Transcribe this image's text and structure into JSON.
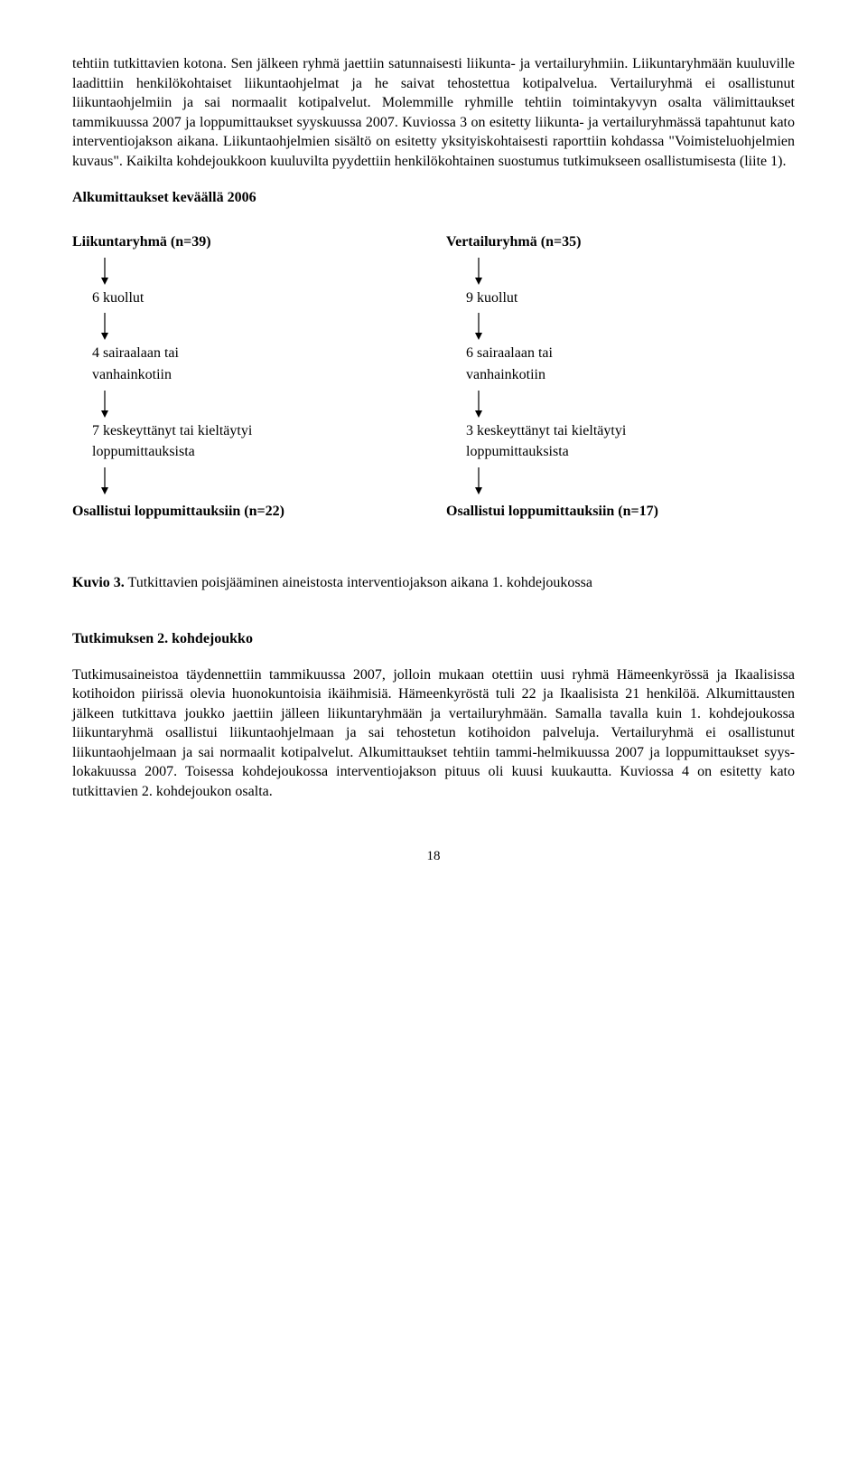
{
  "intro_paragraph": "tehtiin tutkittavien kotona. Sen jälkeen ryhmä jaettiin satunnaisesti liikunta- ja vertailuryhmiin. Liikuntaryhmään kuuluville laadittiin henkilökohtaiset liikuntaohjelmat ja he saivat tehostettua kotipalvelua. Vertailuryhmä ei osallistunut liikuntaohjelmiin ja sai normaalit kotipalvelut. Molemmille ryhmille tehtiin toimintakyvyn osalta välimittaukset tammikuussa 2007 ja loppumittaukset syyskuussa 2007. Kuviossa 3 on esitetty liikunta- ja vertailuryhmässä tapahtunut kato interventiojakson aikana. Liikuntaohjelmien sisältö on esitetty yksityiskohtaisesti raporttiin kohdassa \"Voimisteluohjelmien kuvaus\". Kaikilta kohdejoukkoon kuuluvilta pyydettiin henkilökohtainen suostumus tutkimukseen osallistumisesta (liite 1).",
  "section_title": "Alkumittaukset  keväällä 2006",
  "flow": {
    "left": {
      "head": "Liikuntaryhmä (n=39)",
      "n1": "6 kuollut",
      "n2a": "4 sairaalaan tai",
      "n2b": "vanhainkotiin",
      "n3a": "7 keskeyttänyt tai kieltäytyi",
      "n3b": "loppumittauksista",
      "foot": "Osallistui loppumittauksiin  (n=22)"
    },
    "right": {
      "head": "Vertailuryhmä (n=35)",
      "n1": "9 kuollut",
      "n2a": "6 sairaalaan tai",
      "n2b": "vanhainkotiin",
      "n3a": "3 keskeyttänyt tai kieltäytyi",
      "n3b": "loppumittauksista",
      "foot": "Osallistui loppumittauksiin (n=17)"
    }
  },
  "caption_bold": "Kuvio 3.",
  "caption_rest": " Tutkittavien poisjääminen aineistosta  interventiojakson aikana 1. kohdejoukossa",
  "subheading": "Tutkimuksen 2. kohdejoukko",
  "body2": "Tutkimusaineistoa täydennettiin tammikuussa 2007, jolloin mukaan otettiin uusi ryhmä Hämeenkyrössä ja Ikaalisissa kotihoidon piirissä olevia huonokuntoisia ikäihmisiä. Hämeenkyröstä tuli 22 ja Ikaalisista 21 henkilöä. Alkumittausten jälkeen tutkittava joukko jaettiin jälleen liikuntaryhmään ja vertailuryhmään. Samalla tavalla  kuin 1. kohdejoukossa liikuntaryhmä osallistui liikuntaohjelmaan ja sai tehostetun kotihoidon palveluja. Vertailuryhmä ei osallistunut liikuntaohjelmaan ja  sai normaalit kotipalvelut. Alkumittaukset tehtiin tammi-helmikuussa 2007 ja loppumittaukset syys-lokakuussa 2007. Toisessa kohdejoukossa interventiojakson pituus oli kuusi kuukautta. Kuviossa 4 on esitetty kato tutkittavien 2. kohdejoukon osalta.",
  "page_number": "18",
  "arrow": {
    "width": 12,
    "height": 30,
    "color": "#000000"
  }
}
